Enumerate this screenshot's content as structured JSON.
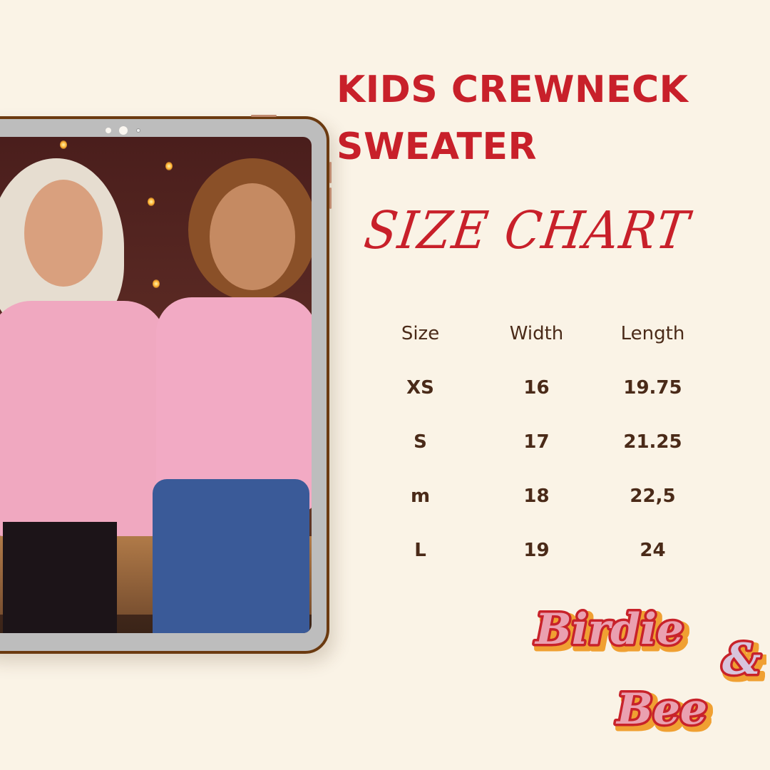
{
  "header": {
    "title_line1": "KIDS CREWNECK",
    "title_line2": "SWEATER",
    "subtitle": "SIZE CHART"
  },
  "colors": {
    "accent": "#c8202a",
    "text": "#4a2a18",
    "background": "#faf3e6",
    "frame": "#6b3a10"
  },
  "size_table": {
    "headers": [
      "Size",
      "Width",
      "Length"
    ],
    "rows": [
      [
        "XS",
        "16",
        "19.75"
      ],
      [
        "S",
        "17",
        "21.25"
      ],
      [
        "m",
        "18",
        "22,5"
      ],
      [
        "L",
        "19",
        "24"
      ]
    ]
  },
  "logo": {
    "text": "Birdie & Bee"
  },
  "photo": {
    "description_icon": "product-photo"
  }
}
